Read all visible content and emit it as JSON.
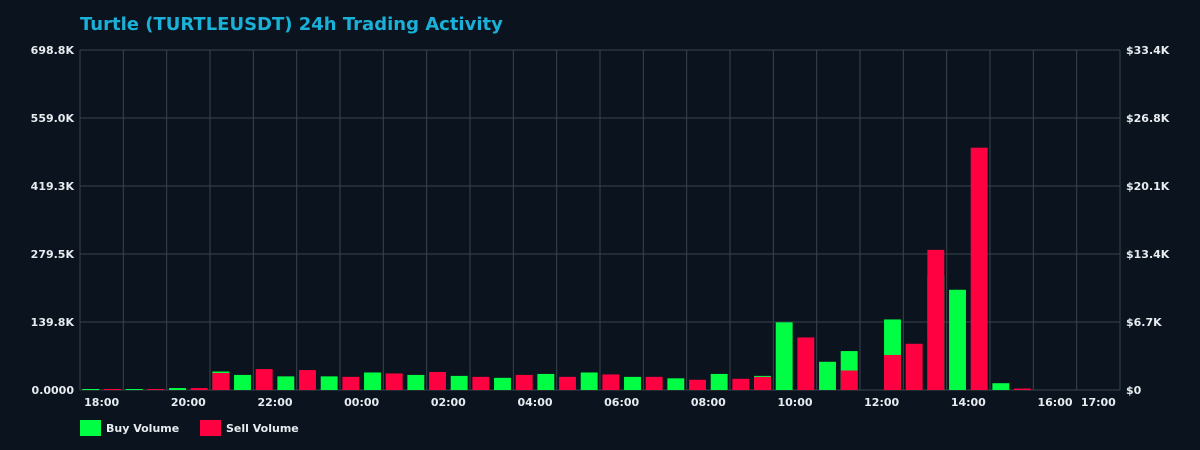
{
  "title": "Turtle (TURTLEUSDT) 24h Trading Activity",
  "colors": {
    "background": "#0b141e",
    "grid": "#3a434c",
    "title": "#1ab0d8",
    "text": "#e8ecf0",
    "buy": "#00ff44",
    "sell": "#ff0040"
  },
  "chart_data": {
    "type": "bar",
    "title": "Turtle (TURTLEUSDT) 24h Trading Activity",
    "y_left_ticks": [
      "0.0000",
      "139.8K",
      "279.5K",
      "419.3K",
      "559.0K",
      "698.8K"
    ],
    "y_right_ticks": [
      "$0",
      "$6.7K",
      "$13.4K",
      "$20.1K",
      "$26.8K",
      "$33.4K"
    ],
    "ylim": [
      0,
      698800
    ],
    "x_range": [
      -0.5,
      47.5
    ],
    "x_tick_labels": [
      {
        "label": "18:00",
        "x": 0.5
      },
      {
        "label": "20:00",
        "x": 4.5
      },
      {
        "label": "22:00",
        "x": 8.5
      },
      {
        "label": "00:00",
        "x": 12.5
      },
      {
        "label": "02:00",
        "x": 16.5
      },
      {
        "label": "04:00",
        "x": 20.5
      },
      {
        "label": "06:00",
        "x": 24.5
      },
      {
        "label": "08:00",
        "x": 28.5
      },
      {
        "label": "10:00",
        "x": 32.5
      },
      {
        "label": "12:00",
        "x": 36.5
      },
      {
        "label": "14:00",
        "x": 40.5
      },
      {
        "label": "16:00",
        "x": 44.5
      },
      {
        "label": "17:00",
        "x": 46.5
      }
    ],
    "series": [
      {
        "name": "Buy Volume",
        "color": "#00ff44",
        "points": [
          [
            0,
            2000
          ],
          [
            2,
            2000
          ],
          [
            4,
            4000
          ],
          [
            6,
            38000
          ],
          [
            7,
            31000
          ],
          [
            9,
            28000
          ],
          [
            11,
            28000
          ],
          [
            13,
            36000
          ],
          [
            15,
            31000
          ],
          [
            17,
            29000
          ],
          [
            19,
            25000
          ],
          [
            21,
            33000
          ],
          [
            23,
            36000
          ],
          [
            25,
            27000
          ],
          [
            27,
            24000
          ],
          [
            29,
            33000
          ],
          [
            31,
            29000
          ],
          [
            32,
            139000
          ],
          [
            34,
            58000
          ],
          [
            35,
            80000
          ],
          [
            37,
            145000
          ],
          [
            39,
            236000
          ],
          [
            40,
            206000
          ],
          [
            42,
            14000
          ]
        ]
      },
      {
        "name": "Sell Volume",
        "color": "#ff0040",
        "points": [
          [
            1,
            2000
          ],
          [
            3,
            2000
          ],
          [
            5,
            4000
          ],
          [
            6,
            35000
          ],
          [
            8,
            43000
          ],
          [
            10,
            41000
          ],
          [
            12,
            27000
          ],
          [
            14,
            34000
          ],
          [
            16,
            37000
          ],
          [
            18,
            27000
          ],
          [
            20,
            31000
          ],
          [
            22,
            27000
          ],
          [
            24,
            32000
          ],
          [
            26,
            27000
          ],
          [
            28,
            21000
          ],
          [
            30,
            23000
          ],
          [
            31,
            27000
          ],
          [
            33,
            108000
          ],
          [
            35,
            40000
          ],
          [
            37,
            72000
          ],
          [
            38,
            95000
          ],
          [
            39,
            288000
          ],
          [
            41,
            498000
          ],
          [
            43,
            3000
          ]
        ]
      }
    ]
  },
  "legend": {
    "buy_label": "Buy Volume",
    "sell_label": "Sell Volume"
  }
}
